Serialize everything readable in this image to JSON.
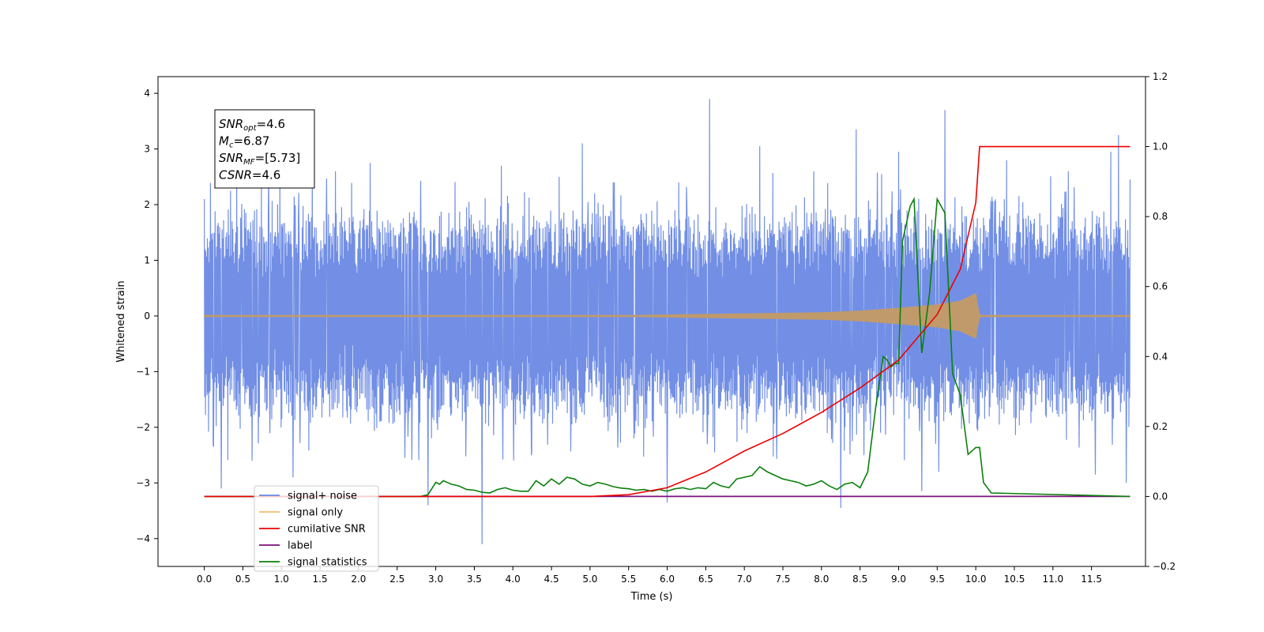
{
  "chart_data": {
    "type": "line",
    "xlabel": "Time (s)",
    "ylabel_left": "Whitened strain",
    "ylabel_right": "",
    "xlim": [
      -0.6,
      12.2
    ],
    "ylim_left": [
      -4.5,
      4.3
    ],
    "ylim_right": [
      -0.2,
      1.2
    ],
    "x_ticks": [
      0.0,
      0.5,
      1.0,
      1.5,
      2.0,
      2.5,
      3.0,
      3.5,
      4.0,
      4.5,
      5.0,
      5.5,
      6.0,
      6.5,
      7.0,
      7.5,
      8.0,
      8.5,
      9.0,
      9.5,
      10.0,
      10.5,
      11.0,
      11.5
    ],
    "x_tick_labels": [
      "0.0",
      "0.5",
      "1.0",
      "1.5",
      "2.0",
      "2.5",
      "3.0",
      "3.5",
      "4.0",
      "4.5",
      "5.0",
      "5.5",
      "6.0",
      "6.5",
      "7.0",
      "7.5",
      "8.0",
      "8.5",
      "9.0",
      "9.5",
      "10.0",
      "10.5",
      "11.0",
      "11.5"
    ],
    "y_left_ticks": [
      -4,
      -3,
      -2,
      -1,
      0,
      1,
      2,
      3,
      4
    ],
    "y_left_tick_labels": [
      "−4",
      "−3",
      "−2",
      "−1",
      "0",
      "1",
      "2",
      "3",
      "4"
    ],
    "y_right_ticks": [
      -0.2,
      0.0,
      0.2,
      0.4,
      0.6,
      0.8,
      1.0,
      1.2
    ],
    "y_right_tick_labels": [
      "−0.2",
      "0.0",
      "0.2",
      "0.4",
      "0.6",
      "0.8",
      "1.0",
      "1.2"
    ],
    "grid": false,
    "legend_position": "lower-left",
    "annotation": {
      "snr_opt": "=4.6",
      "mc": "=6.87",
      "snr_mf": "=[5.73]",
      "csnr": "=4.6"
    },
    "series": [
      {
        "name": "signal+ noise",
        "axis": "left",
        "color": "#6a89e4",
        "description_kind": "whitened noise envelope",
        "x": [
          0.0,
          12.0
        ],
        "typical_range": [
          -1.9,
          1.9
        ],
        "spikes": [
          [
            0.0,
            2.1
          ],
          [
            0.12,
            -2.35
          ],
          [
            0.22,
            -3.1
          ],
          [
            0.42,
            2.6
          ],
          [
            0.62,
            -2.6
          ],
          [
            0.98,
            2.5
          ],
          [
            1.15,
            -2.9
          ],
          [
            1.4,
            3.15
          ],
          [
            1.7,
            2.6
          ],
          [
            2.15,
            2.75
          ],
          [
            2.9,
            -3.4
          ],
          [
            3.6,
            -4.1
          ],
          [
            3.85,
            2.7
          ],
          [
            4.6,
            2.5
          ],
          [
            4.9,
            3.1
          ],
          [
            5.3,
            2.4
          ],
          [
            6.0,
            -3.35
          ],
          [
            6.15,
            2.4
          ],
          [
            6.55,
            3.9
          ],
          [
            7.2,
            3.05
          ],
          [
            7.9,
            2.6
          ],
          [
            8.25,
            -3.45
          ],
          [
            8.45,
            3.35
          ],
          [
            8.55,
            -2.5
          ],
          [
            9.0,
            2.95
          ],
          [
            9.3,
            -3.15
          ],
          [
            9.52,
            -2.8
          ],
          [
            9.6,
            3.7
          ],
          [
            10.4,
            2.8
          ],
          [
            11.2,
            2.6
          ],
          [
            11.55,
            -2.85
          ],
          [
            11.75,
            2.95
          ],
          [
            11.85,
            3.25
          ],
          [
            11.95,
            -3.0
          ],
          [
            12.0,
            2.45
          ]
        ]
      },
      {
        "name": "signal only",
        "axis": "left",
        "color": "#f5bd6e",
        "x": [
          0.0,
          5.0,
          6.0,
          7.0,
          8.0,
          8.5,
          9.0,
          9.5,
          9.8,
          10.0,
          10.05,
          12.0
        ],
        "amplitude": [
          0.0,
          0.0,
          0.02,
          0.04,
          0.06,
          0.09,
          0.14,
          0.2,
          0.27,
          0.4,
          0.0,
          0.0
        ]
      },
      {
        "name": "cumilative SNR",
        "axis": "right",
        "color": "#ee0000",
        "x": [
          0.0,
          5.0,
          5.5,
          6.0,
          6.5,
          7.0,
          7.5,
          8.0,
          8.5,
          9.0,
          9.5,
          9.8,
          10.0,
          10.05,
          12.0
        ],
        "y": [
          0.0,
          0.0,
          0.005,
          0.025,
          0.07,
          0.13,
          0.18,
          0.24,
          0.31,
          0.39,
          0.52,
          0.65,
          0.84,
          1.0,
          1.0
        ]
      },
      {
        "name": "label",
        "axis": "right",
        "color": "#7d0f7d",
        "x": [
          0.0,
          12.0
        ],
        "y": [
          0.0,
          0.0
        ]
      },
      {
        "name": "signal statistics",
        "axis": "right",
        "color": "#0a800a",
        "x": [
          0.0,
          2.8,
          2.9,
          3.0,
          3.05,
          3.1,
          3.15,
          3.2,
          3.3,
          3.4,
          3.5,
          3.6,
          3.7,
          3.8,
          3.9,
          4.0,
          4.1,
          4.2,
          4.3,
          4.4,
          4.5,
          4.6,
          4.7,
          4.8,
          4.9,
          5.0,
          5.1,
          5.2,
          5.3,
          5.4,
          5.5,
          5.6,
          5.7,
          5.8,
          5.9,
          6.0,
          6.1,
          6.2,
          6.3,
          6.4,
          6.5,
          6.6,
          6.7,
          6.8,
          6.9,
          7.0,
          7.1,
          7.2,
          7.3,
          7.4,
          7.5,
          7.6,
          7.7,
          7.8,
          7.9,
          8.0,
          8.1,
          8.2,
          8.3,
          8.4,
          8.5,
          8.6,
          8.7,
          8.8,
          8.85,
          8.9,
          8.95,
          9.0,
          9.05,
          9.1,
          9.15,
          9.2,
          9.3,
          9.4,
          9.5,
          9.6,
          9.7,
          9.8,
          9.9,
          10.0,
          10.05,
          10.1,
          10.2,
          12.0
        ],
        "y": [
          0.0,
          0.0,
          0.005,
          0.04,
          0.035,
          0.045,
          0.04,
          0.035,
          0.03,
          0.02,
          0.018,
          0.012,
          0.01,
          0.02,
          0.025,
          0.018,
          0.015,
          0.015,
          0.045,
          0.03,
          0.05,
          0.035,
          0.055,
          0.05,
          0.035,
          0.03,
          0.04,
          0.035,
          0.028,
          0.024,
          0.022,
          0.018,
          0.02,
          0.015,
          0.02,
          0.015,
          0.022,
          0.025,
          0.02,
          0.025,
          0.022,
          0.04,
          0.03,
          0.025,
          0.05,
          0.055,
          0.06,
          0.085,
          0.07,
          0.06,
          0.05,
          0.045,
          0.04,
          0.03,
          0.035,
          0.045,
          0.03,
          0.02,
          0.035,
          0.04,
          0.025,
          0.07,
          0.25,
          0.4,
          0.39,
          0.37,
          0.38,
          0.38,
          0.73,
          0.78,
          0.83,
          0.85,
          0.41,
          0.58,
          0.85,
          0.81,
          0.35,
          0.29,
          0.12,
          0.14,
          0.14,
          0.04,
          0.01,
          0.0
        ]
      }
    ]
  }
}
